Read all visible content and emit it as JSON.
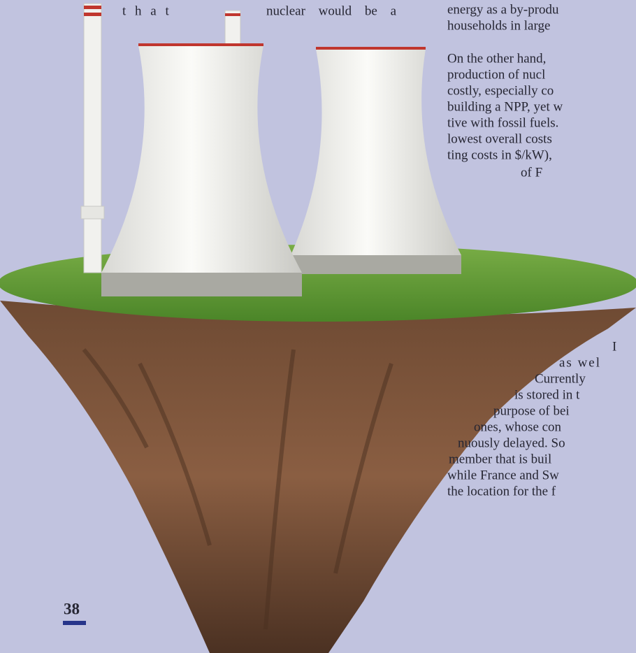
{
  "left_fragment": [
    "t h a t",
    "nuclear would be a"
  ],
  "right_column": {
    "top_lines": [
      "energy as a by-produ",
      "households in large",
      "On the other hand,",
      "production of nucl",
      "costly, especially co",
      "building a NPP, yet w",
      "tive with fossil fuels.",
      "lowest overall costs",
      "ting costs in $/kW),",
      "of F"
    ],
    "bottom_lines": [
      "I",
      "as wel",
      "Currently",
      "is stored in t",
      "purpose of bei",
      "ones, whose con",
      "nuously delayed. So",
      "member that is buil",
      "while France and Sw",
      "the location for the f"
    ]
  },
  "page_number": "38"
}
